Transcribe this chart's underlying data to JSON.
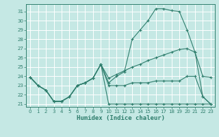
{
  "xlabel": "Humidex (Indice chaleur)",
  "bg_color": "#c5e8e4",
  "grid_color": "#ffffff",
  "line_color": "#2e7d6c",
  "xlim": [
    -0.5,
    23.5
  ],
  "ylim": [
    20.7,
    31.8
  ],
  "yticks": [
    21,
    22,
    23,
    24,
    25,
    26,
    27,
    28,
    29,
    30,
    31
  ],
  "xticks": [
    0,
    1,
    2,
    3,
    4,
    5,
    6,
    7,
    8,
    9,
    10,
    11,
    12,
    13,
    14,
    15,
    16,
    17,
    18,
    19,
    20,
    21,
    22,
    23
  ],
  "series": [
    {
      "x": [
        0,
        1,
        2,
        3,
        4,
        5,
        6,
        7,
        8,
        9,
        10,
        11,
        12,
        13,
        14,
        15,
        16,
        17,
        18,
        19,
        20,
        21,
        22,
        23
      ],
      "y": [
        23.9,
        23.0,
        22.5,
        21.3,
        21.3,
        21.8,
        23.0,
        23.3,
        23.8,
        25.3,
        23.3,
        24.0,
        24.5,
        28.0,
        29.0,
        30.0,
        31.3,
        31.3,
        31.1,
        31.0,
        29.0,
        26.6,
        21.8,
        21.0
      ]
    },
    {
      "x": [
        0,
        1,
        2,
        3,
        4,
        5,
        6,
        7,
        8,
        9,
        10,
        11,
        12,
        13,
        14,
        15,
        16,
        17,
        18,
        19,
        20,
        21,
        22,
        23
      ],
      "y": [
        23.9,
        23.0,
        22.5,
        21.3,
        21.3,
        21.8,
        23.0,
        23.3,
        23.8,
        25.3,
        23.8,
        24.2,
        24.6,
        25.0,
        25.3,
        25.7,
        26.0,
        26.3,
        26.6,
        26.9,
        27.0,
        26.6,
        24.0,
        23.9
      ]
    },
    {
      "x": [
        0,
        1,
        2,
        3,
        4,
        5,
        6,
        7,
        8,
        9,
        10,
        11,
        12,
        13,
        14,
        15,
        16,
        17,
        18,
        19,
        20,
        21,
        22,
        23
      ],
      "y": [
        23.9,
        23.0,
        22.5,
        21.3,
        21.3,
        21.8,
        23.0,
        23.3,
        23.8,
        25.3,
        23.0,
        23.0,
        23.0,
        23.3,
        23.3,
        23.3,
        23.5,
        23.5,
        23.5,
        23.5,
        24.0,
        24.0,
        21.8,
        21.0
      ]
    },
    {
      "x": [
        0,
        1,
        2,
        3,
        4,
        5,
        6,
        7,
        8,
        9,
        10,
        11,
        12,
        13,
        14,
        15,
        16,
        17,
        18,
        19,
        20,
        21,
        22,
        23
      ],
      "y": [
        23.9,
        23.0,
        22.5,
        21.3,
        21.3,
        21.8,
        23.0,
        23.3,
        23.8,
        25.3,
        21.0,
        21.0,
        21.0,
        21.0,
        21.0,
        21.0,
        21.0,
        21.0,
        21.0,
        21.0,
        21.0,
        21.0,
        21.0,
        21.0
      ]
    }
  ]
}
